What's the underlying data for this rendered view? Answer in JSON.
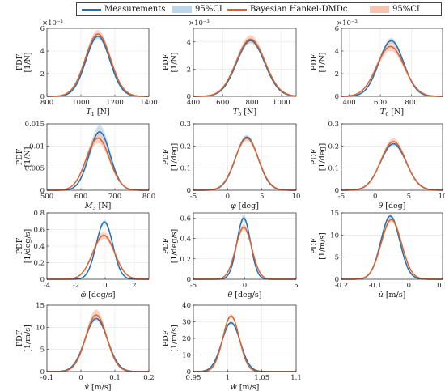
{
  "legend": {
    "items": [
      {
        "label": "Measurements",
        "kind": "line",
        "color": "#1f6fb5"
      },
      {
        "label": "95%CI",
        "kind": "patch",
        "color": "#bcd6ec"
      },
      {
        "label": "Bayesian Hankel-DMDc",
        "kind": "line",
        "color": "#e0622b"
      },
      {
        "label": "95%CI",
        "kind": "patch",
        "color": "#f6c4b1"
      }
    ]
  },
  "colors": {
    "measurements": "#1f6fb5",
    "measurements_ci": "#bcd6ec",
    "model": "#e0622b",
    "model_ci": "#f6c4b1"
  },
  "chart_data": [
    {
      "type": "line",
      "xlabel_main": "T",
      "xlabel_sub": "1",
      "xlabel_unit": "[N]",
      "ylabel": "PDF",
      "yunit": "[1/N]",
      "yexp": "×10⁻³",
      "xlim": [
        800,
        1400
      ],
      "ylim": [
        0,
        6
      ],
      "xticks": [
        "800",
        "1000",
        "1200",
        "1400"
      ],
      "yticks": [
        "0",
        "2",
        "4",
        "6"
      ],
      "series": [
        {
          "name": "Measurements",
          "mu": 1100,
          "sigma": 70,
          "peak": 5.3,
          "ci": 0.25
        },
        {
          "name": "Bayesian Hankel-DMDc",
          "mu": 1100,
          "sigma": 74,
          "peak": 5.5,
          "ci": 0.35
        }
      ]
    },
    {
      "type": "line",
      "xlabel_main": "T",
      "xlabel_sub": "5",
      "xlabel_unit": "[N]",
      "ylabel": "PDF",
      "yunit": "[1/N]",
      "yexp": "×10⁻³",
      "xlim": [
        400,
        1100
      ],
      "ylim": [
        0,
        5
      ],
      "xticks": [
        "400",
        "600",
        "800",
        "1000"
      ],
      "yticks": [
        "0",
        "2",
        "4"
      ],
      "series": [
        {
          "name": "Measurements",
          "mu": 790,
          "sigma": 95,
          "peak": 4.1,
          "ci": 0.2
        },
        {
          "name": "Bayesian Hankel-DMDc",
          "mu": 790,
          "sigma": 98,
          "peak": 4.2,
          "ci": 0.3
        }
      ]
    },
    {
      "type": "line",
      "xlabel_main": "T",
      "xlabel_sub": "6",
      "xlabel_unit": "[N]",
      "ylabel": "PDF",
      "yunit": "[1/N]",
      "yexp": "×10⁻³",
      "xlim": [
        350,
        1000
      ],
      "ylim": [
        0,
        6
      ],
      "xticks": [
        "400",
        "600",
        "800"
      ],
      "yticks": [
        "0",
        "2",
        "4",
        "6"
      ],
      "series": [
        {
          "name": "Measurements",
          "mu": 670,
          "sigma": 80,
          "peak": 4.9,
          "ci": 0.25
        },
        {
          "name": "Bayesian Hankel-DMDc",
          "mu": 665,
          "sigma": 88,
          "peak": 4.4,
          "ci": 0.4
        }
      ]
    },
    {
      "type": "line",
      "xlabel_main": "M",
      "xlabel_sub": "3",
      "xlabel_unit": "[N]",
      "ylabel": "PDF",
      "yunit": "[1/N]",
      "yexp": "",
      "xlim": [
        500,
        800
      ],
      "ylim": [
        0,
        0.015
      ],
      "xticks": [
        "500",
        "600",
        "700",
        "800"
      ],
      "yticks": [
        "0",
        "0.005",
        "0.01",
        "0.015"
      ],
      "series": [
        {
          "name": "Measurements",
          "mu": 655,
          "sigma": 31,
          "peak": 0.0132,
          "ci": 0.0015
        },
        {
          "name": "Bayesian Hankel-DMDc",
          "mu": 650,
          "sigma": 34,
          "peak": 0.0118,
          "ci": 0.0012
        }
      ]
    },
    {
      "type": "line",
      "xlabel_main": "φ",
      "xlabel_sub": "",
      "xlabel_unit": "[deg]",
      "ylabel": "PDF",
      "yunit": "[1/deg]",
      "yexp": "",
      "xlim": [
        -5,
        10
      ],
      "ylim": [
        0,
        0.3
      ],
      "xticks": [
        "-5",
        "0",
        "5",
        "10"
      ],
      "yticks": [
        "0",
        "0.1",
        "0.2",
        "0.3"
      ],
      "series": [
        {
          "name": "Measurements",
          "mu": 2.8,
          "sigma": 1.65,
          "peak": 0.24,
          "ci": 0.01
        },
        {
          "name": "Bayesian Hankel-DMDc",
          "mu": 2.8,
          "sigma": 1.7,
          "peak": 0.235,
          "ci": 0.012
        }
      ]
    },
    {
      "type": "line",
      "xlabel_main": "θ",
      "xlabel_sub": "",
      "xlabel_unit": "[deg]",
      "ylabel": "PDF",
      "yunit": "[1/deg]",
      "yexp": "",
      "xlim": [
        -5,
        10
      ],
      "ylim": [
        0,
        0.3
      ],
      "xticks": [
        "-5",
        "0",
        "5",
        "10"
      ],
      "yticks": [
        "0",
        "0.1",
        "0.2",
        "0.3"
      ],
      "series": [
        {
          "name": "Measurements",
          "mu": 2.7,
          "sigma": 1.9,
          "peak": 0.21,
          "ci": 0.01
        },
        {
          "name": "Bayesian Hankel-DMDc",
          "mu": 2.7,
          "sigma": 1.85,
          "peak": 0.22,
          "ci": 0.015
        }
      ]
    },
    {
      "type": "line",
      "xlabel_main": "φ̇",
      "xlabel_sub": "",
      "xlabel_unit": "[deg/s]",
      "ylabel": "PDF",
      "yunit": "[1/deg/s]",
      "yexp": "",
      "xlim": [
        -4,
        3
      ],
      "ylim": [
        0,
        0.8
      ],
      "xticks": [
        "-4",
        "-2",
        "0",
        "2"
      ],
      "yticks": [
        "0",
        "0.2",
        "0.4",
        "0.6",
        "0.8"
      ],
      "series": [
        {
          "name": "Measurements",
          "mu": -0.05,
          "sigma": 0.57,
          "peak": 0.69,
          "ci": 0.03
        },
        {
          "name": "Bayesian Hankel-DMDc",
          "mu": -0.1,
          "sigma": 0.75,
          "peak": 0.53,
          "ci": 0.04
        }
      ]
    },
    {
      "type": "line",
      "xlabel_main": "θ̇",
      "xlabel_sub": "",
      "xlabel_unit": "[deg/s]",
      "ylabel": "PDF",
      "yunit": "[1/deg/s]",
      "yexp": "",
      "xlim": [
        -5,
        5
      ],
      "ylim": [
        0,
        0.65
      ],
      "xticks": [
        "-5",
        "0",
        "5"
      ],
      "yticks": [
        "0",
        "0.2",
        "0.4",
        "0.6"
      ],
      "series": [
        {
          "name": "Measurements",
          "mu": -0.1,
          "sigma": 0.66,
          "peak": 0.6,
          "ci": 0.03
        },
        {
          "name": "Bayesian Hankel-DMDc",
          "mu": -0.1,
          "sigma": 0.78,
          "peak": 0.51,
          "ci": 0.03
        }
      ]
    },
    {
      "type": "line",
      "xlabel_main": "u̇",
      "xlabel_sub": "",
      "xlabel_unit": "[m/s]",
      "ylabel": "PDF",
      "yunit": "[1/m/s]",
      "yexp": "",
      "xlim": [
        -0.2,
        0.1
      ],
      "ylim": [
        0,
        15
      ],
      "xticks": [
        "-0.2",
        "-0.1",
        "0",
        "0.1"
      ],
      "yticks": [
        "0",
        "5",
        "10",
        "15"
      ],
      "series": [
        {
          "name": "Measurements",
          "mu": -0.055,
          "sigma": 0.028,
          "peak": 14.3,
          "ci": 0.5
        },
        {
          "name": "Bayesian Hankel-DMDc",
          "mu": -0.052,
          "sigma": 0.03,
          "peak": 13.5,
          "ci": 0.6
        }
      ]
    },
    {
      "type": "line",
      "xlabel_main": "v̇",
      "xlabel_sub": "",
      "xlabel_unit": "[m/s]",
      "ylabel": "PDF",
      "yunit": "[1/m/s]",
      "yexp": "",
      "xlim": [
        -0.1,
        0.2
      ],
      "ylim": [
        0,
        15
      ],
      "xticks": [
        "-0.1",
        "0",
        "0.1",
        "0.2"
      ],
      "yticks": [
        "0",
        "5",
        "10",
        "15"
      ],
      "series": [
        {
          "name": "Measurements",
          "mu": 0.045,
          "sigma": 0.033,
          "peak": 12.0,
          "ci": 0.6
        },
        {
          "name": "Bayesian Hankel-DMDc",
          "mu": 0.045,
          "sigma": 0.031,
          "peak": 12.8,
          "ci": 1.2
        }
      ]
    },
    {
      "type": "line",
      "xlabel_main": "ẇ",
      "xlabel_sub": "",
      "xlabel_unit": "[m/s]",
      "ylabel": "PDF",
      "yunit": "[1/m/s]",
      "yexp": "",
      "xlim": [
        0.95,
        1.1
      ],
      "ylim": [
        0,
        40
      ],
      "xticks": [
        "0.95",
        "1",
        "1.05",
        "1.1"
      ],
      "yticks": [
        "0",
        "10",
        "20",
        "30",
        "40"
      ],
      "series": [
        {
          "name": "Measurements",
          "mu": 1.005,
          "sigma": 0.0135,
          "peak": 29.5,
          "ci": 1.0
        },
        {
          "name": "Bayesian Hankel-DMDc",
          "mu": 1.005,
          "sigma": 0.012,
          "peak": 33.5,
          "ci": 1.2
        }
      ]
    }
  ]
}
